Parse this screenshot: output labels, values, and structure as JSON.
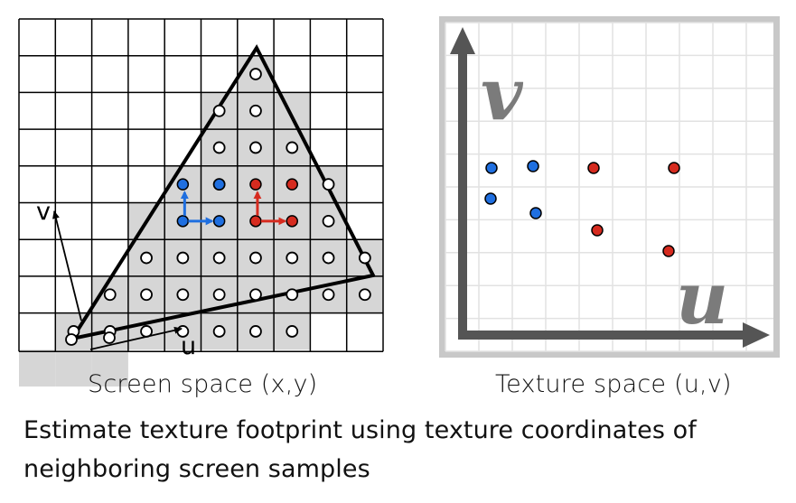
{
  "screen_space": {
    "caption": "Screen space (x,y)",
    "axis_u_label": "u",
    "axis_v_label": "v",
    "grid_cols": 10,
    "grid_rows": 9,
    "grid_color": "#000000",
    "covered_color": "#d6d6d6",
    "triangle_color": "#000000",
    "blue_color": "#1f6fe0",
    "red_color": "#d62b1f"
  },
  "texture_space": {
    "caption": "Texture space (u,v)",
    "axis_u_label": "u",
    "axis_v_label": "v",
    "frame_color": "#c8c8c8",
    "grid_color": "#e2e2e2",
    "axis_color": "#555555",
    "label_color": "#7b7b7b",
    "blue_color": "#1f6fe0",
    "red_color": "#d62b1f"
  },
  "description": {
    "line1": "Estimate texture footprint using texture coordinates of",
    "line2": "neighboring screen samples"
  }
}
